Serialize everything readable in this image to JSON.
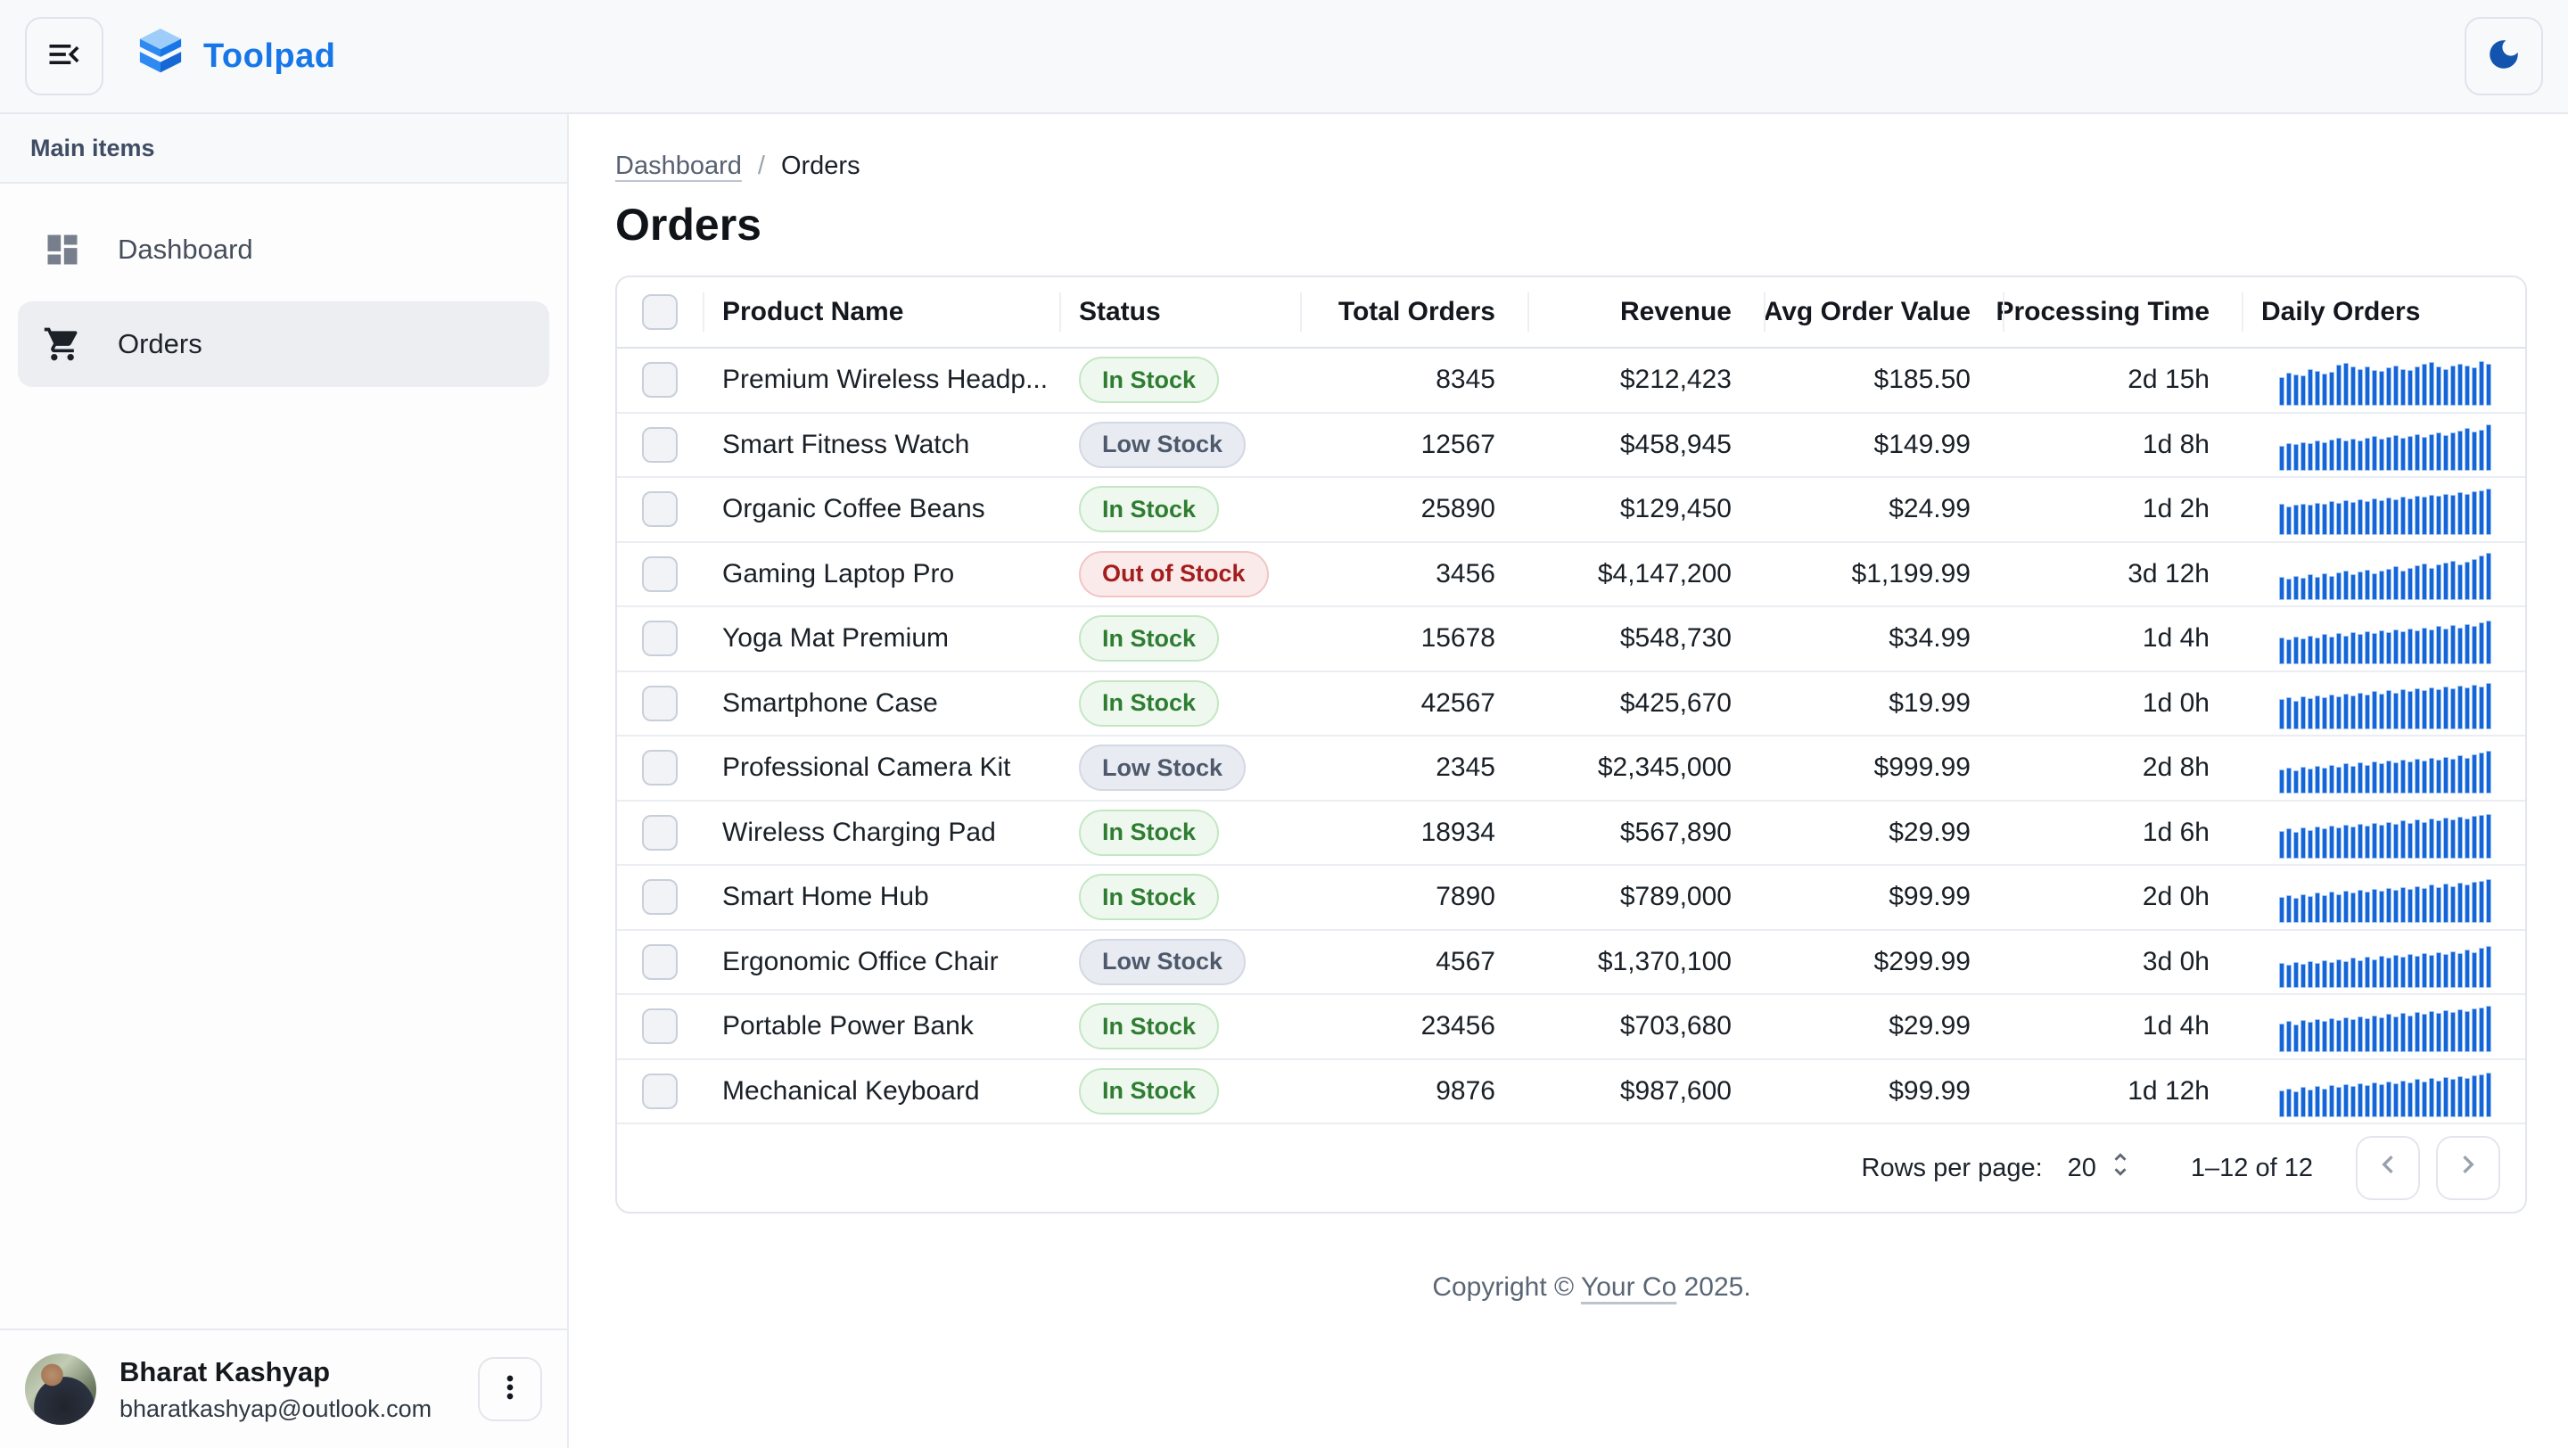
{
  "app": {
    "brand": "Toolpad"
  },
  "sidebar": {
    "section_label": "Main items",
    "items": [
      {
        "label": "Dashboard",
        "icon": "dashboard-icon",
        "selected": false
      },
      {
        "label": "Orders",
        "icon": "cart-icon",
        "selected": true
      }
    ],
    "user": {
      "name": "Bharat Kashyap",
      "email": "bharatkashyap@outlook.com"
    }
  },
  "breadcrumb": {
    "link": "Dashboard",
    "separator": "/",
    "current": "Orders"
  },
  "page": {
    "title": "Orders"
  },
  "table": {
    "columns": [
      {
        "id": "select",
        "label": "",
        "align": "center"
      },
      {
        "id": "product",
        "label": "Product Name",
        "align": "left"
      },
      {
        "id": "status",
        "label": "Status",
        "align": "left"
      },
      {
        "id": "total_orders",
        "label": "Total Orders",
        "align": "right"
      },
      {
        "id": "revenue",
        "label": "Revenue",
        "align": "right"
      },
      {
        "id": "avg_order_value",
        "label": "Avg Order Value",
        "align": "right"
      },
      {
        "id": "processing_time",
        "label": "Processing Time",
        "align": "right"
      },
      {
        "id": "daily_orders",
        "label": "Daily Orders",
        "align": "left"
      }
    ],
    "status_variants": {
      "In Stock": "chip-success",
      "Low Stock": "chip-neutral",
      "Out of Stock": "chip-error"
    },
    "rows": [
      {
        "product": "Premium Wireless Headp...",
        "status": "In Stock",
        "total_orders": "8345",
        "revenue": "$212,423",
        "avg_order_value": "$185.50",
        "processing_time": "2d 15h",
        "daily_orders": [
          58,
          66,
          62,
          60,
          74,
          70,
          64,
          68,
          82,
          86,
          78,
          74,
          78,
          72,
          70,
          76,
          80,
          74,
          72,
          78,
          84,
          88,
          78,
          74,
          80,
          84,
          80,
          76,
          90,
          84
        ]
      },
      {
        "product": "Smart Fitness Watch",
        "status": "Low Stock",
        "total_orders": "12567",
        "revenue": "$458,945",
        "avg_order_value": "$149.99",
        "processing_time": "1d 8h",
        "daily_orders": [
          50,
          56,
          53,
          58,
          55,
          60,
          57,
          62,
          66,
          60,
          64,
          61,
          66,
          70,
          64,
          68,
          72,
          66,
          70,
          74,
          68,
          73,
          77,
          71,
          76,
          81,
          85,
          79,
          83,
          92
        ]
      },
      {
        "product": "Organic Coffee Beans",
        "status": "In Stock",
        "total_orders": "25890",
        "revenue": "$129,450",
        "avg_order_value": "$24.99",
        "processing_time": "1d 2h",
        "daily_orders": [
          62,
          58,
          60,
          63,
          60,
          65,
          62,
          67,
          64,
          69,
          66,
          71,
          68,
          73,
          70,
          75,
          72,
          77,
          74,
          79,
          76,
          81,
          78,
          83,
          80,
          85,
          82,
          87,
          90,
          92
        ]
      },
      {
        "product": "Gaming Laptop Pro",
        "status": "Out of Stock",
        "total_orders": "3456",
        "revenue": "$4,147,200",
        "avg_order_value": "$1,199.99",
        "processing_time": "3d 12h",
        "daily_orders": [
          46,
          43,
          49,
          45,
          51,
          47,
          53,
          49,
          55,
          59,
          51,
          57,
          61,
          53,
          59,
          63,
          67,
          59,
          65,
          69,
          73,
          65,
          71,
          75,
          79,
          71,
          77,
          83,
          89,
          95
        ]
      },
      {
        "product": "Yoga Mat Premium",
        "status": "In Stock",
        "total_orders": "15678",
        "revenue": "$548,730",
        "avg_order_value": "$34.99",
        "processing_time": "1d 4h",
        "daily_orders": [
          54,
          50,
          56,
          52,
          58,
          54,
          60,
          56,
          62,
          58,
          64,
          60,
          66,
          62,
          68,
          64,
          70,
          66,
          72,
          68,
          74,
          70,
          76,
          72,
          78,
          74,
          80,
          76,
          84,
          88
        ]
      },
      {
        "product": "Smartphone Case",
        "status": "In Stock",
        "total_orders": "42567",
        "revenue": "$425,670",
        "avg_order_value": "$19.99",
        "processing_time": "1d 0h",
        "daily_orders": [
          60,
          64,
          58,
          66,
          62,
          68,
          64,
          70,
          66,
          72,
          68,
          74,
          70,
          76,
          72,
          78,
          74,
          80,
          76,
          82,
          78,
          84,
          80,
          86,
          82,
          88,
          84,
          90,
          86,
          92
        ]
      },
      {
        "product": "Professional Camera Kit",
        "status": "Low Stock",
        "total_orders": "2345",
        "revenue": "$2,345,000",
        "avg_order_value": "$999.99",
        "processing_time": "2d 8h",
        "daily_orders": [
          48,
          52,
          46,
          54,
          50,
          56,
          52,
          58,
          54,
          60,
          56,
          62,
          58,
          64,
          60,
          66,
          62,
          68,
          64,
          70,
          66,
          72,
          68,
          74,
          70,
          76,
          72,
          78,
          82,
          86
        ]
      },
      {
        "product": "Wireless Charging Pad",
        "status": "In Stock",
        "total_orders": "18934",
        "revenue": "$567,890",
        "avg_order_value": "$29.99",
        "processing_time": "1d 6h",
        "daily_orders": [
          56,
          60,
          54,
          62,
          58,
          64,
          60,
          66,
          62,
          68,
          64,
          70,
          66,
          72,
          68,
          74,
          70,
          76,
          72,
          78,
          74,
          80,
          76,
          82,
          78,
          84,
          80,
          86,
          88,
          90
        ]
      },
      {
        "product": "Smart Home Hub",
        "status": "In Stock",
        "total_orders": "7890",
        "revenue": "$789,000",
        "avg_order_value": "$99.99",
        "processing_time": "2d 0h",
        "daily_orders": [
          52,
          56,
          50,
          58,
          54,
          60,
          56,
          62,
          58,
          64,
          60,
          66,
          62,
          68,
          64,
          70,
          66,
          72,
          68,
          74,
          70,
          76,
          72,
          78,
          74,
          80,
          76,
          82,
          84,
          88
        ]
      },
      {
        "product": "Ergonomic Office Chair",
        "status": "Low Stock",
        "total_orders": "4567",
        "revenue": "$1,370,100",
        "avg_order_value": "$299.99",
        "processing_time": "3d 0h",
        "daily_orders": [
          50,
          46,
          52,
          48,
          54,
          50,
          56,
          52,
          58,
          54,
          60,
          56,
          62,
          58,
          64,
          60,
          66,
          62,
          68,
          64,
          70,
          66,
          72,
          68,
          74,
          70,
          76,
          72,
          80,
          84
        ]
      },
      {
        "product": "Portable Power Bank",
        "status": "In Stock",
        "total_orders": "23456",
        "revenue": "$703,680",
        "avg_order_value": "$29.99",
        "processing_time": "1d 4h",
        "daily_orders": [
          58,
          62,
          56,
          64,
          60,
          66,
          62,
          68,
          64,
          70,
          66,
          72,
          68,
          74,
          70,
          76,
          72,
          78,
          74,
          80,
          76,
          82,
          78,
          84,
          80,
          86,
          82,
          88,
          90,
          92
        ]
      },
      {
        "product": "Mechanical Keyboard",
        "status": "In Stock",
        "total_orders": "9876",
        "revenue": "$987,600",
        "avg_order_value": "$99.99",
        "processing_time": "1d 12h",
        "daily_orders": [
          54,
          58,
          52,
          60,
          56,
          62,
          58,
          64,
          60,
          66,
          62,
          68,
          64,
          70,
          66,
          72,
          68,
          74,
          70,
          76,
          72,
          78,
          74,
          80,
          76,
          82,
          78,
          84,
          86,
          90
        ]
      }
    ]
  },
  "pagination": {
    "rows_per_page_label": "Rows per page:",
    "rows_per_page": "20",
    "range_label": "1–12 of 12"
  },
  "footer": {
    "prefix": "Copyright © ",
    "company": "Your Co",
    "suffix": " 2025."
  },
  "colors": {
    "accent": "#1877E8",
    "moon_icon": "#1254AE",
    "sparkline_bar": "#1565D8",
    "chip_success_text": "#2E7D32",
    "chip_success_bg": "#EFF8EE",
    "chip_success_border": "#C3E7C3",
    "chip_neutral_text": "#4E5A6B",
    "chip_neutral_bg": "#E8EBF2",
    "chip_neutral_border": "#D3D8E4",
    "chip_error_text": "#A31D1D",
    "chip_error_bg": "#FBEAEA",
    "chip_error_border": "#F2C4C4",
    "header_bg": "#F7F9FB",
    "border": "#E5E9EF"
  }
}
